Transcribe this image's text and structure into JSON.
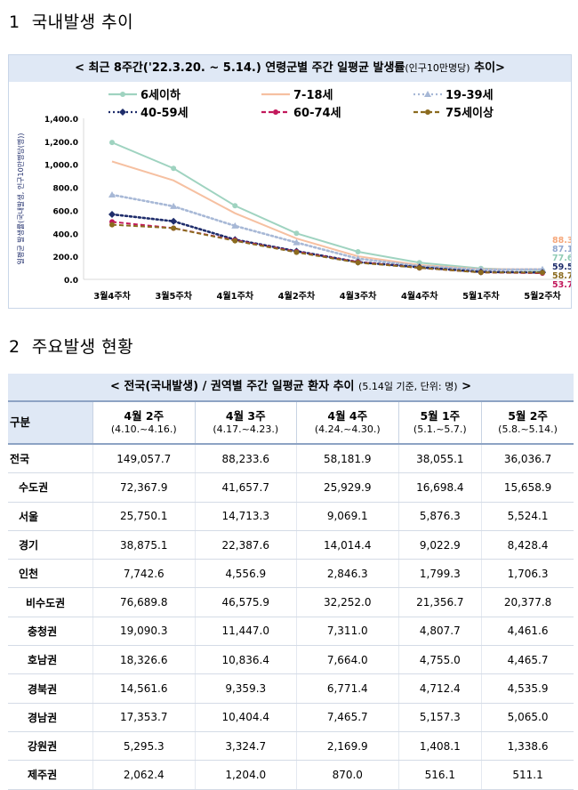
{
  "section1": {
    "number": "1",
    "title": "국내발생 추이"
  },
  "section2": {
    "number": "2",
    "title": "주요발생 현황"
  },
  "chart_header": {
    "main": "< 최근 8주간('22.3.20. ~ 5.14.) 연령군별 주간 일평균 발생률",
    "small": "(인구10만명당)",
    "tail": " 추이>"
  },
  "chart_data": {
    "type": "line",
    "title": "< 최근 8주간('22.3.20. ~ 5.14.) 연령군별 주간 일평균 발생률(인구10만명당) 추이>",
    "ylabel": "일평균 발생률(국내발생, 인구10만명당(명))",
    "xlabel": "",
    "categories": [
      "3월4주차",
      "3월5주차",
      "4월1주차",
      "4월2주차",
      "4월3주차",
      "4월4주차",
      "5월1주차",
      "5월2주차"
    ],
    "ylim": [
      0,
      1400
    ],
    "yticks": [
      "0.0",
      "200.0",
      "400.0",
      "600.0",
      "800.0",
      "1,000.0",
      "1,200.0",
      "1,400.0"
    ],
    "grid": false,
    "legend_position": "top",
    "series": [
      {
        "name": "6세이하",
        "color": "#9fd3c0",
        "style": "solid",
        "marker": "circle",
        "values": [
          1190,
          965,
          640,
          400,
          240,
          145,
          95,
          77.6
        ]
      },
      {
        "name": "7-18세",
        "color": "#f6c0a1",
        "style": "solid",
        "marker": "none",
        "values": [
          1025,
          860,
          575,
          355,
          200,
          125,
          88,
          88.3
        ]
      },
      {
        "name": "19-39세",
        "color": "#a7b8d6",
        "style": "dotted",
        "marker": "triangle",
        "values": [
          735,
          635,
          465,
          320,
          180,
          115,
          84,
          87.1
        ]
      },
      {
        "name": "40-59세",
        "color": "#1f2d6b",
        "style": "dotted",
        "marker": "diamond",
        "values": [
          565,
          505,
          345,
          245,
          150,
          105,
          65,
          59.5
        ]
      },
      {
        "name": "60-74세",
        "color": "#c2185b",
        "style": "dashed",
        "marker": "circle",
        "values": [
          500,
          445,
          340,
          240,
          150,
          100,
          60,
          53.7
        ]
      },
      {
        "name": "75세이상",
        "color": "#8b6b1f",
        "style": "dashed",
        "marker": "circle",
        "values": [
          475,
          445,
          335,
          235,
          145,
          100,
          60,
          58.7
        ]
      }
    ],
    "end_labels": [
      {
        "text": "88.3",
        "color": "#f6a77a"
      },
      {
        "text": "87.1",
        "color": "#8fa6cf"
      },
      {
        "text": "77.6",
        "color": "#8fcbb4"
      },
      {
        "text": "59.5",
        "color": "#1f2d6b"
      },
      {
        "text": "58.7",
        "color": "#8b6b1f"
      },
      {
        "text": "53.7",
        "color": "#c2185b"
      }
    ]
  },
  "table": {
    "header": {
      "main": "< 전국(국내발생) / 권역별 주간 일평균 환자 추이",
      "small": "(5.14일 기준, 단위: 명)",
      "tail": " >"
    },
    "col_label": "구분",
    "columns": [
      {
        "week": "4월 2주",
        "range": "(4.10.~4.16.)"
      },
      {
        "week": "4월 3주",
        "range": "(4.17.~4.23.)"
      },
      {
        "week": "4월 4주",
        "range": "(4.24.~4.30.)"
      },
      {
        "week": "5월 1주",
        "range": "(5.1.~5.7.)"
      },
      {
        "week": "5월 2주",
        "range": "(5.8.~5.14.)"
      }
    ],
    "rows": [
      {
        "name": "전국",
        "level": 0,
        "values": [
          "149,057.7",
          "88,233.6",
          "58,181.9",
          "38,055.1",
          "36,036.7"
        ]
      },
      {
        "name": "수도권",
        "level": 1,
        "values": [
          "72,367.9",
          "41,657.7",
          "25,929.9",
          "16,698.4",
          "15,658.9"
        ]
      },
      {
        "name": "서울",
        "level": 2,
        "values": [
          "25,750.1",
          "14,713.3",
          "9,069.1",
          "5,876.3",
          "5,524.1"
        ]
      },
      {
        "name": "경기",
        "level": 2,
        "values": [
          "38,875.1",
          "22,387.6",
          "14,014.4",
          "9,022.9",
          "8,428.4"
        ]
      },
      {
        "name": "인천",
        "level": 2,
        "values": [
          "7,742.6",
          "4,556.9",
          "2,846.3",
          "1,799.3",
          "1,706.3"
        ]
      },
      {
        "name": "비수도권",
        "level": 3,
        "values": [
          "76,689.8",
          "46,575.9",
          "32,252.0",
          "21,356.7",
          "20,377.8"
        ]
      },
      {
        "name": "충청권",
        "level": 4,
        "values": [
          "19,090.3",
          "11,447.0",
          "7,311.0",
          "4,807.7",
          "4,461.6"
        ]
      },
      {
        "name": "호남권",
        "level": 4,
        "values": [
          "18,326.6",
          "10,836.4",
          "7,664.0",
          "4,755.0",
          "4,465.7"
        ]
      },
      {
        "name": "경북권",
        "level": 4,
        "values": [
          "14,561.6",
          "9,359.3",
          "6,771.4",
          "4,712.4",
          "4,535.9"
        ]
      },
      {
        "name": "경남권",
        "level": 4,
        "values": [
          "17,353.7",
          "10,404.4",
          "7,465.7",
          "5,157.3",
          "5,065.0"
        ]
      },
      {
        "name": "강원권",
        "level": 4,
        "values": [
          "5,295.3",
          "3,324.7",
          "2,169.9",
          "1,408.1",
          "1,338.6"
        ]
      },
      {
        "name": "제주권",
        "level": 4,
        "values": [
          "2,062.4",
          "1,204.0",
          "870.0",
          "516.1",
          "511.1"
        ]
      }
    ]
  }
}
